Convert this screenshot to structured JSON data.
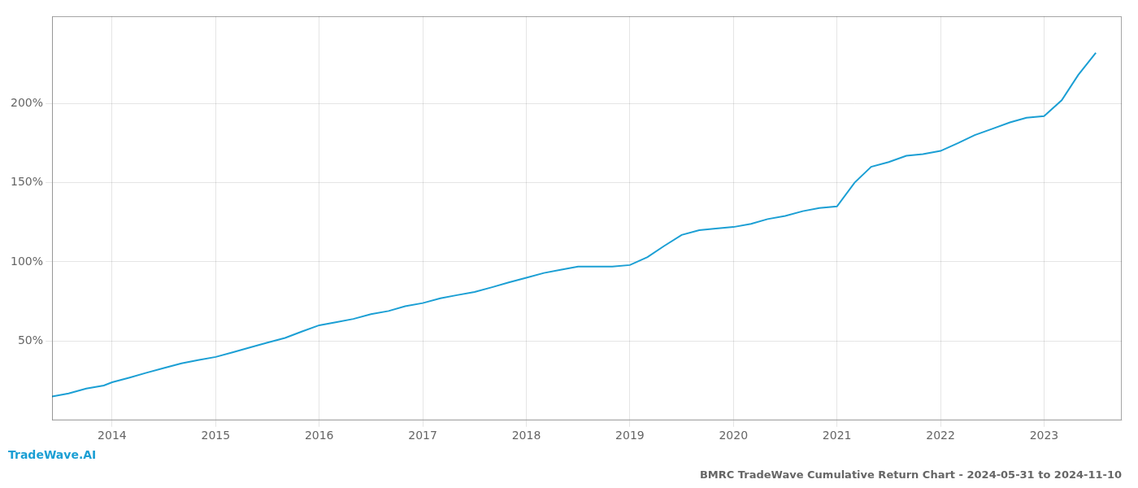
{
  "chart_data": {
    "type": "line",
    "title": "BMRC TradeWave Cumulative Return Chart - 2024-05-31 to 2024-11-10",
    "annotations": [
      "TradeWave.AI"
    ],
    "x": [
      2013.42,
      2013.58,
      2013.75,
      2013.92,
      2014.0,
      2014.17,
      2014.33,
      2014.5,
      2014.67,
      2014.83,
      2015.0,
      2015.17,
      2015.33,
      2015.5,
      2015.67,
      2015.83,
      2016.0,
      2016.17,
      2016.33,
      2016.5,
      2016.67,
      2016.83,
      2017.0,
      2017.17,
      2017.33,
      2017.5,
      2017.67,
      2017.83,
      2018.0,
      2018.17,
      2018.33,
      2018.5,
      2018.67,
      2018.83,
      2019.0,
      2019.17,
      2019.33,
      2019.5,
      2019.67,
      2019.83,
      2020.0,
      2020.17,
      2020.33,
      2020.5,
      2020.67,
      2020.83,
      2021.0,
      2021.17,
      2021.33,
      2021.5,
      2021.67,
      2021.83,
      2022.0,
      2022.17,
      2022.33,
      2022.5,
      2022.67,
      2022.83,
      2023.0,
      2023.17,
      2023.33,
      2023.5
    ],
    "values": [
      15,
      17,
      20,
      22,
      24,
      27,
      30,
      33,
      36,
      38,
      40,
      43,
      46,
      49,
      52,
      56,
      60,
      62,
      64,
      67,
      69,
      72,
      74,
      77,
      79,
      81,
      84,
      87,
      90,
      93,
      95,
      97,
      97,
      97,
      98,
      103,
      110,
      117,
      120,
      121,
      122,
      124,
      127,
      129,
      132,
      134,
      135,
      150,
      160,
      163,
      167,
      168,
      170,
      175,
      180,
      184,
      188,
      191,
      192,
      202,
      218,
      232
    ],
    "color": "#1b9fd4",
    "xlim": [
      2013.42,
      2023.75
    ],
    "xticks": [
      2014,
      2015,
      2016,
      2017,
      2018,
      2019,
      2020,
      2021,
      2022,
      2023
    ],
    "ylim": [
      0,
      255
    ],
    "yticks": [
      {
        "value": 50,
        "label": "50%"
      },
      {
        "value": 100,
        "label": "100%"
      },
      {
        "value": 150,
        "label": "150%"
      },
      {
        "value": 200,
        "label": "200%"
      }
    ],
    "grid": true
  }
}
